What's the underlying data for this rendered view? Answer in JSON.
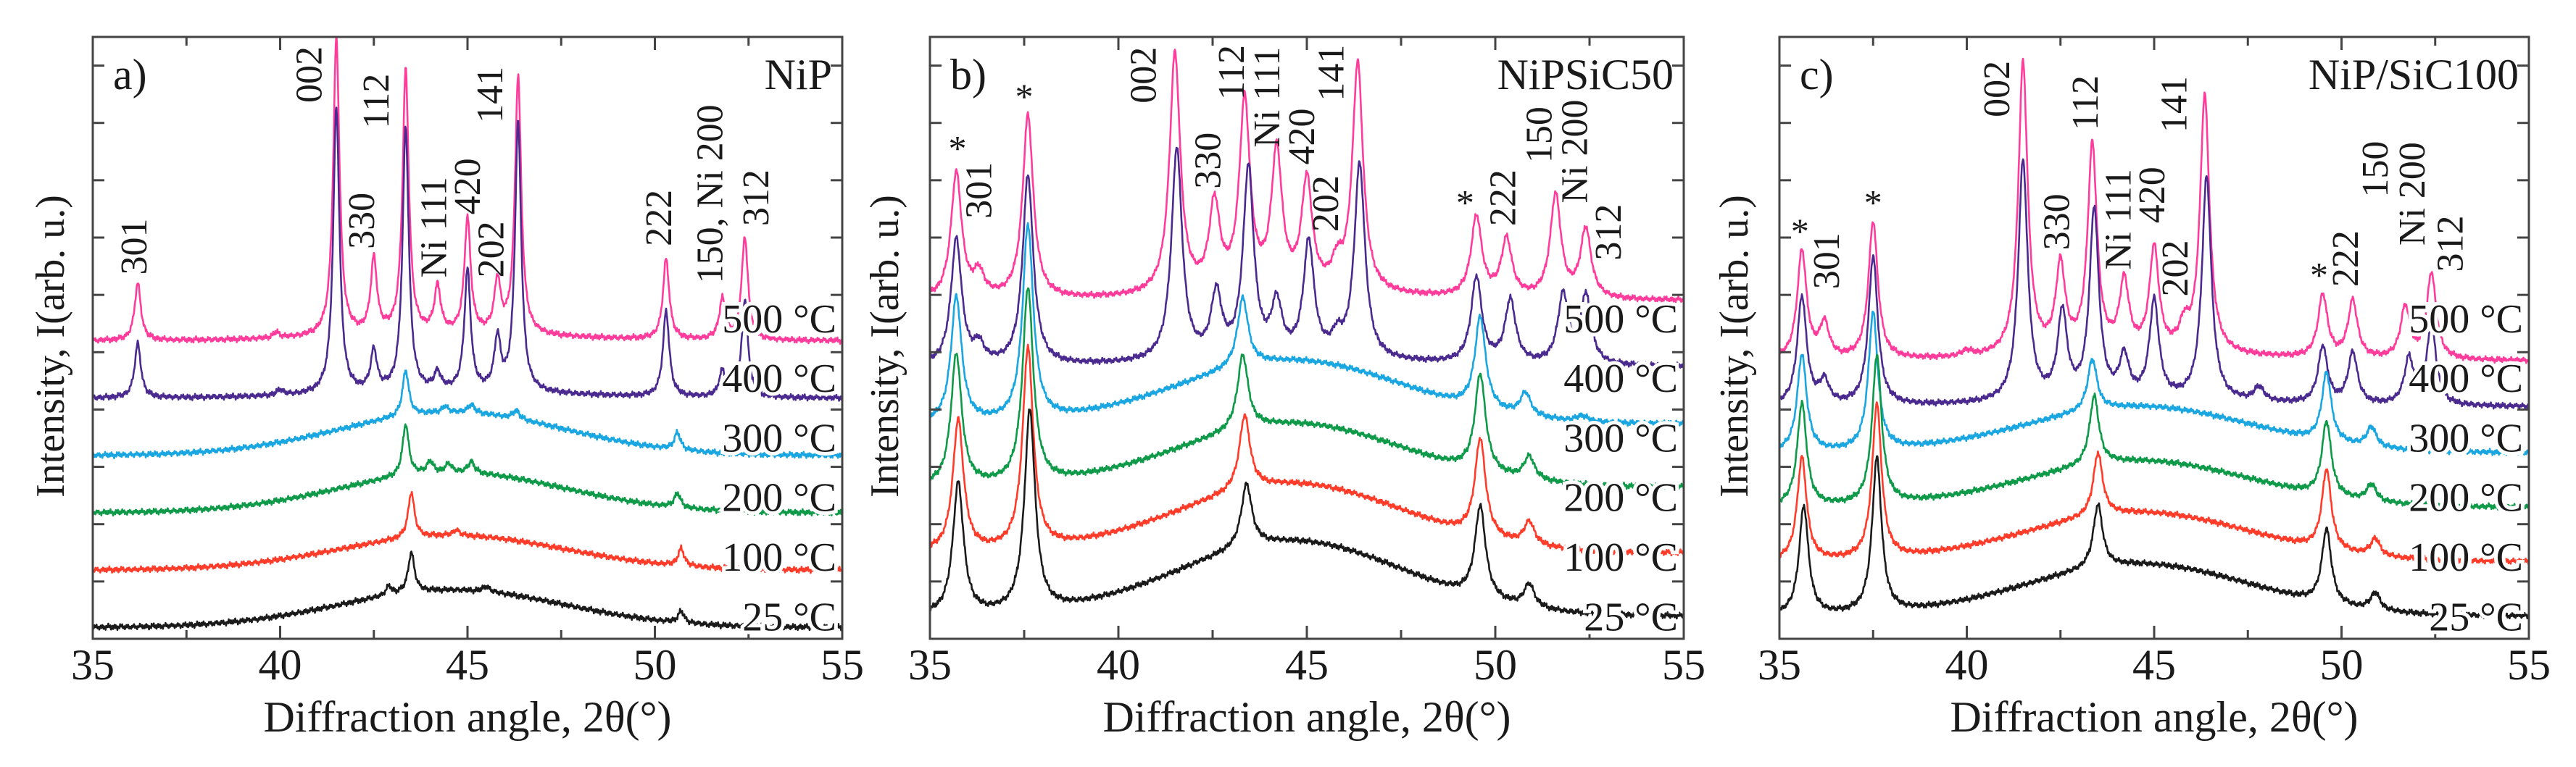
{
  "chart_data": [
    {
      "type": "line",
      "panel_label": "a)",
      "sample": "NiP",
      "xlabel": "Diffraction angle, 2θ(°)",
      "ylabel": "Intensity, I(arb. u.)",
      "xlim": [
        35,
        55
      ],
      "ylim": [
        0,
        10.5
      ],
      "xticks": [
        "35",
        "40",
        "45",
        "50",
        "55"
      ],
      "peak_width": 0.1,
      "series": [
        {
          "name": "500 °C",
          "color": "#ff3c9b",
          "baseline": 5.2,
          "hump": 0.1,
          "peaks": [
            [
              36.2,
              1.0
            ],
            [
              39.9,
              0.1
            ],
            [
              41.5,
              5.2
            ],
            [
              42.5,
              1.3
            ],
            [
              43.35,
              4.6
            ],
            [
              44.2,
              0.8
            ],
            [
              45.0,
              2.0
            ],
            [
              45.8,
              0.9
            ],
            [
              46.35,
              4.5
            ],
            [
              50.3,
              1.4
            ],
            [
              51.8,
              0.7
            ],
            [
              52.4,
              1.8
            ]
          ]
        },
        {
          "name": "400 °C",
          "color": "#4b2a8f",
          "baseline": 4.2,
          "hump": 0.1,
          "peaks": [
            [
              36.2,
              0.95
            ],
            [
              40.0,
              0.1
            ],
            [
              41.5,
              5.0
            ],
            [
              42.5,
              0.7
            ],
            [
              43.35,
              4.6
            ],
            [
              44.2,
              0.3
            ],
            [
              45.0,
              2.1
            ],
            [
              45.8,
              0.9
            ],
            [
              46.35,
              4.7
            ],
            [
              50.3,
              1.5
            ],
            [
              51.8,
              0.45
            ],
            [
              52.4,
              1.7
            ]
          ]
        },
        {
          "name": "300 °C",
          "color": "#1aa6e0",
          "baseline": 3.2,
          "hump": 0.75,
          "peaks": [
            [
              43.35,
              0.8
            ],
            [
              44.4,
              0.1
            ],
            [
              45.1,
              0.15
            ],
            [
              46.3,
              0.15
            ],
            [
              50.6,
              0.3
            ]
          ]
        },
        {
          "name": "200 °C",
          "color": "#0e9a48",
          "baseline": 2.2,
          "hump": 0.7,
          "peaks": [
            [
              43.35,
              0.9
            ],
            [
              44.0,
              0.2
            ],
            [
              44.5,
              0.15
            ],
            [
              45.1,
              0.2
            ],
            [
              50.6,
              0.25
            ]
          ]
        },
        {
          "name": "100 °C",
          "color": "#ff3b2a",
          "baseline": 1.2,
          "hump": 0.6,
          "peaks": [
            [
              43.5,
              0.8
            ],
            [
              44.7,
              0.1
            ],
            [
              50.7,
              0.3
            ]
          ]
        },
        {
          "name": "25 °C",
          "color": "#1a1a1a",
          "baseline": 0.2,
          "hump": 0.65,
          "peaks": [
            [
              43.5,
              0.7
            ],
            [
              42.9,
              0.15
            ],
            [
              45.5,
              0.1
            ],
            [
              50.7,
              0.2
            ]
          ]
        }
      ],
      "annotations": [
        {
          "text": "301",
          "x": 36.2,
          "y": 6.35
        },
        {
          "text": "002",
          "x": 40.87,
          "y": 9.35
        },
        {
          "text": "330",
          "x": 42.27,
          "y": 6.8
        },
        {
          "text": "112",
          "x": 42.66,
          "y": 8.9
        },
        {
          "text": "Ni 111",
          "x": 44.2,
          "y": 6.3
        },
        {
          "text": "420",
          "x": 45.1,
          "y": 7.4
        },
        {
          "text": "202",
          "x": 45.73,
          "y": 6.3
        },
        {
          "text": "141",
          "x": 45.7,
          "y": 9.0
        },
        {
          "text": "222",
          "x": 50.2,
          "y": 6.85
        },
        {
          "text": "150, Ni 200",
          "x": 51.57,
          "y": 6.2
        },
        {
          "text": "312",
          "x": 52.8,
          "y": 7.2
        }
      ],
      "stars": []
    },
    {
      "type": "line",
      "panel_label": "b)",
      "sample": "NiPSiC50",
      "xlabel": "Diffraction angle, 2θ(°)",
      "ylabel": "Intensity, I(arb. u.)",
      "xlim": [
        35,
        55
      ],
      "ylim": [
        0,
        10.5
      ],
      "xticks": [
        "35",
        "40",
        "45",
        "50",
        "55"
      ],
      "peak_width": 0.17,
      "series": [
        {
          "name": "500 °C",
          "color": "#ff3c9b",
          "baseline": 5.9,
          "hump": 0.1,
          "peaks": [
            [
              35.7,
              2.2
            ],
            [
              36.3,
              0.4
            ],
            [
              37.6,
              3.2
            ],
            [
              41.5,
              4.2
            ],
            [
              42.55,
              1.5
            ],
            [
              43.35,
              3.3
            ],
            [
              44.2,
              2.4
            ],
            [
              45.0,
              1.9
            ],
            [
              45.8,
              0.4
            ],
            [
              46.35,
              4.0
            ],
            [
              49.5,
              1.4
            ],
            [
              50.3,
              1.0
            ],
            [
              51.6,
              1.8
            ],
            [
              52.4,
              1.2
            ]
          ]
        },
        {
          "name": "400 °C",
          "color": "#4b2a8f",
          "baseline": 4.75,
          "hump": 0.1,
          "peaks": [
            [
              35.7,
              2.2
            ],
            [
              36.3,
              0.3
            ],
            [
              37.6,
              3.3
            ],
            [
              41.55,
              3.7
            ],
            [
              42.6,
              1.1
            ],
            [
              43.45,
              3.3
            ],
            [
              44.2,
              0.9
            ],
            [
              45.05,
              2.0
            ],
            [
              45.8,
              0.3
            ],
            [
              46.4,
              3.4
            ],
            [
              49.5,
              1.5
            ],
            [
              50.4,
              1.1
            ],
            [
              51.8,
              1.2
            ],
            [
              52.4,
              1.2
            ]
          ]
        },
        {
          "name": "300 °C",
          "color": "#1aa6e0",
          "baseline": 3.75,
          "hump": 1.1,
          "peaks": [
            [
              35.7,
              2.2
            ],
            [
              37.6,
              3.4
            ],
            [
              43.3,
              1.2
            ],
            [
              49.6,
              1.6
            ],
            [
              50.8,
              0.4
            ],
            [
              52.3,
              0.1
            ]
          ]
        },
        {
          "name": "200 °C",
          "color": "#0e9a48",
          "baseline": 2.65,
          "hump": 1.1,
          "peaks": [
            [
              35.7,
              2.3
            ],
            [
              37.6,
              3.4
            ],
            [
              43.3,
              1.3
            ],
            [
              49.6,
              1.7
            ],
            [
              50.9,
              0.4
            ]
          ]
        },
        {
          "name": "100 °C",
          "color": "#ff3b2a",
          "baseline": 1.5,
          "hump": 1.2,
          "peaks": [
            [
              35.75,
              2.3
            ],
            [
              37.6,
              3.5
            ],
            [
              43.35,
              1.3
            ],
            [
              49.6,
              1.7
            ],
            [
              50.9,
              0.4
            ]
          ]
        },
        {
          "name": "25 °C",
          "color": "#1a1a1a",
          "baseline": 0.4,
          "hump": 1.3,
          "peaks": [
            [
              35.75,
              2.3
            ],
            [
              37.65,
              3.5
            ],
            [
              43.4,
              1.1
            ],
            [
              49.6,
              1.6
            ],
            [
              50.9,
              0.4
            ]
          ]
        }
      ],
      "annotations": [
        {
          "text": "301",
          "x": 36.4,
          "y": 7.33
        },
        {
          "text": "002",
          "x": 40.76,
          "y": 9.34
        },
        {
          "text": "330",
          "x": 42.47,
          "y": 7.85
        },
        {
          "text": "112",
          "x": 43.1,
          "y": 9.4
        },
        {
          "text": "Ni 111",
          "x": 44.04,
          "y": 8.57
        },
        {
          "text": "420",
          "x": 44.96,
          "y": 8.27
        },
        {
          "text": "202",
          "x": 45.6,
          "y": 7.1
        },
        {
          "text": "141",
          "x": 45.74,
          "y": 9.38
        },
        {
          "text": "222",
          "x": 50.3,
          "y": 7.2
        },
        {
          "text": "150",
          "x": 51.26,
          "y": 8.3
        },
        {
          "text": "Ni 200",
          "x": 52.2,
          "y": 7.6
        },
        {
          "text": "312",
          "x": 53.1,
          "y": 6.6
        }
      ],
      "stars": [
        {
          "text": "*",
          "x": 35.73,
          "y": 8.65
        },
        {
          "text": "*",
          "x": 37.5,
          "y": 9.55
        },
        {
          "text": "*",
          "x": 49.2,
          "y": 7.7
        }
      ]
    },
    {
      "type": "line",
      "panel_label": "c)",
      "sample": "NiP/SiC100",
      "xlabel": "Diffraction angle, 2θ(°)",
      "ylabel": "Intensity, I(arb. u.)",
      "xlim": [
        35,
        55
      ],
      "ylim": [
        0,
        10.5
      ],
      "xticks": [
        "35",
        "40",
        "45",
        "50",
        "55"
      ],
      "peak_width": 0.15,
      "series": [
        {
          "name": "500 °C",
          "color": "#ff3c9b",
          "baseline": 4.85,
          "hump": 0.1,
          "peaks": [
            [
              35.6,
              1.9
            ],
            [
              36.2,
              0.6
            ],
            [
              37.5,
              2.4
            ],
            [
              40.0,
              0.1
            ],
            [
              41.5,
              5.1
            ],
            [
              42.5,
              1.5
            ],
            [
              43.35,
              3.6
            ],
            [
              44.2,
              1.2
            ],
            [
              45.0,
              1.8
            ],
            [
              45.8,
              0.4
            ],
            [
              46.35,
              4.5
            ],
            [
              49.5,
              1.1
            ],
            [
              50.3,
              1.0
            ],
            [
              51.7,
              0.9
            ],
            [
              52.4,
              1.5
            ]
          ]
        },
        {
          "name": "400 °C",
          "color": "#4b2a8f",
          "baseline": 4.05,
          "hump": 0.1,
          "peaks": [
            [
              35.6,
              1.9
            ],
            [
              36.2,
              0.4
            ],
            [
              37.5,
              2.6
            ],
            [
              41.5,
              4.2
            ],
            [
              42.55,
              1.5
            ],
            [
              43.4,
              3.3
            ],
            [
              44.2,
              0.7
            ],
            [
              45.0,
              1.7
            ],
            [
              46.4,
              3.9
            ],
            [
              47.8,
              0.25
            ],
            [
              49.5,
              1.0
            ],
            [
              50.3,
              0.9
            ],
            [
              51.8,
              0.8
            ],
            [
              52.4,
              1.4
            ]
          ]
        },
        {
          "name": "300 °C",
          "color": "#1aa6e0",
          "baseline": 3.25,
          "hump": 0.8,
          "peaks": [
            [
              35.6,
              1.7
            ],
            [
              37.5,
              2.4
            ],
            [
              43.35,
              0.9
            ],
            [
              49.6,
              1.2
            ],
            [
              50.8,
              0.35
            ]
          ]
        },
        {
          "name": "200 °C",
          "color": "#0e9a48",
          "baseline": 2.3,
          "hump": 0.8,
          "peaks": [
            [
              35.6,
              1.8
            ],
            [
              37.6,
              2.6
            ],
            [
              43.4,
              1.2
            ],
            [
              49.6,
              1.3
            ],
            [
              50.8,
              0.3
            ]
          ]
        },
        {
          "name": "100 °C",
          "color": "#ff3b2a",
          "baseline": 1.35,
          "hump": 0.85,
          "peaks": [
            [
              35.6,
              1.8
            ],
            [
              37.6,
              2.7
            ],
            [
              43.5,
              1.1
            ],
            [
              49.6,
              1.4
            ],
            [
              50.9,
              0.3
            ]
          ]
        },
        {
          "name": "25 °C",
          "color": "#1a1a1a",
          "baseline": 0.4,
          "hump": 0.9,
          "peaks": [
            [
              35.65,
              1.9
            ],
            [
              37.6,
              2.7
            ],
            [
              43.5,
              1.1
            ],
            [
              49.6,
              1.3
            ],
            [
              50.9,
              0.3
            ]
          ]
        }
      ],
      "annotations": [
        {
          "text": "301",
          "x": 36.36,
          "y": 6.1
        },
        {
          "text": "002",
          "x": 40.9,
          "y": 9.1
        },
        {
          "text": "330",
          "x": 42.5,
          "y": 6.78
        },
        {
          "text": "112",
          "x": 43.26,
          "y": 8.87
        },
        {
          "text": "Ni 111",
          "x": 44.14,
          "y": 6.44
        },
        {
          "text": "420",
          "x": 45.04,
          "y": 7.25
        },
        {
          "text": "202",
          "x": 45.66,
          "y": 5.97
        },
        {
          "text": "141",
          "x": 45.63,
          "y": 8.83
        },
        {
          "text": "222",
          "x": 50.2,
          "y": 6.14
        },
        {
          "text": "150",
          "x": 51.0,
          "y": 7.7
        },
        {
          "text": "Ni 200",
          "x": 51.98,
          "y": 6.86
        },
        {
          "text": "312",
          "x": 53.0,
          "y": 6.4
        }
      ],
      "stars": [
        {
          "text": "*",
          "x": 35.55,
          "y": 7.2
        },
        {
          "text": "*",
          "x": 37.5,
          "y": 7.7
        },
        {
          "text": "*",
          "x": 49.4,
          "y": 6.44
        }
      ]
    }
  ]
}
